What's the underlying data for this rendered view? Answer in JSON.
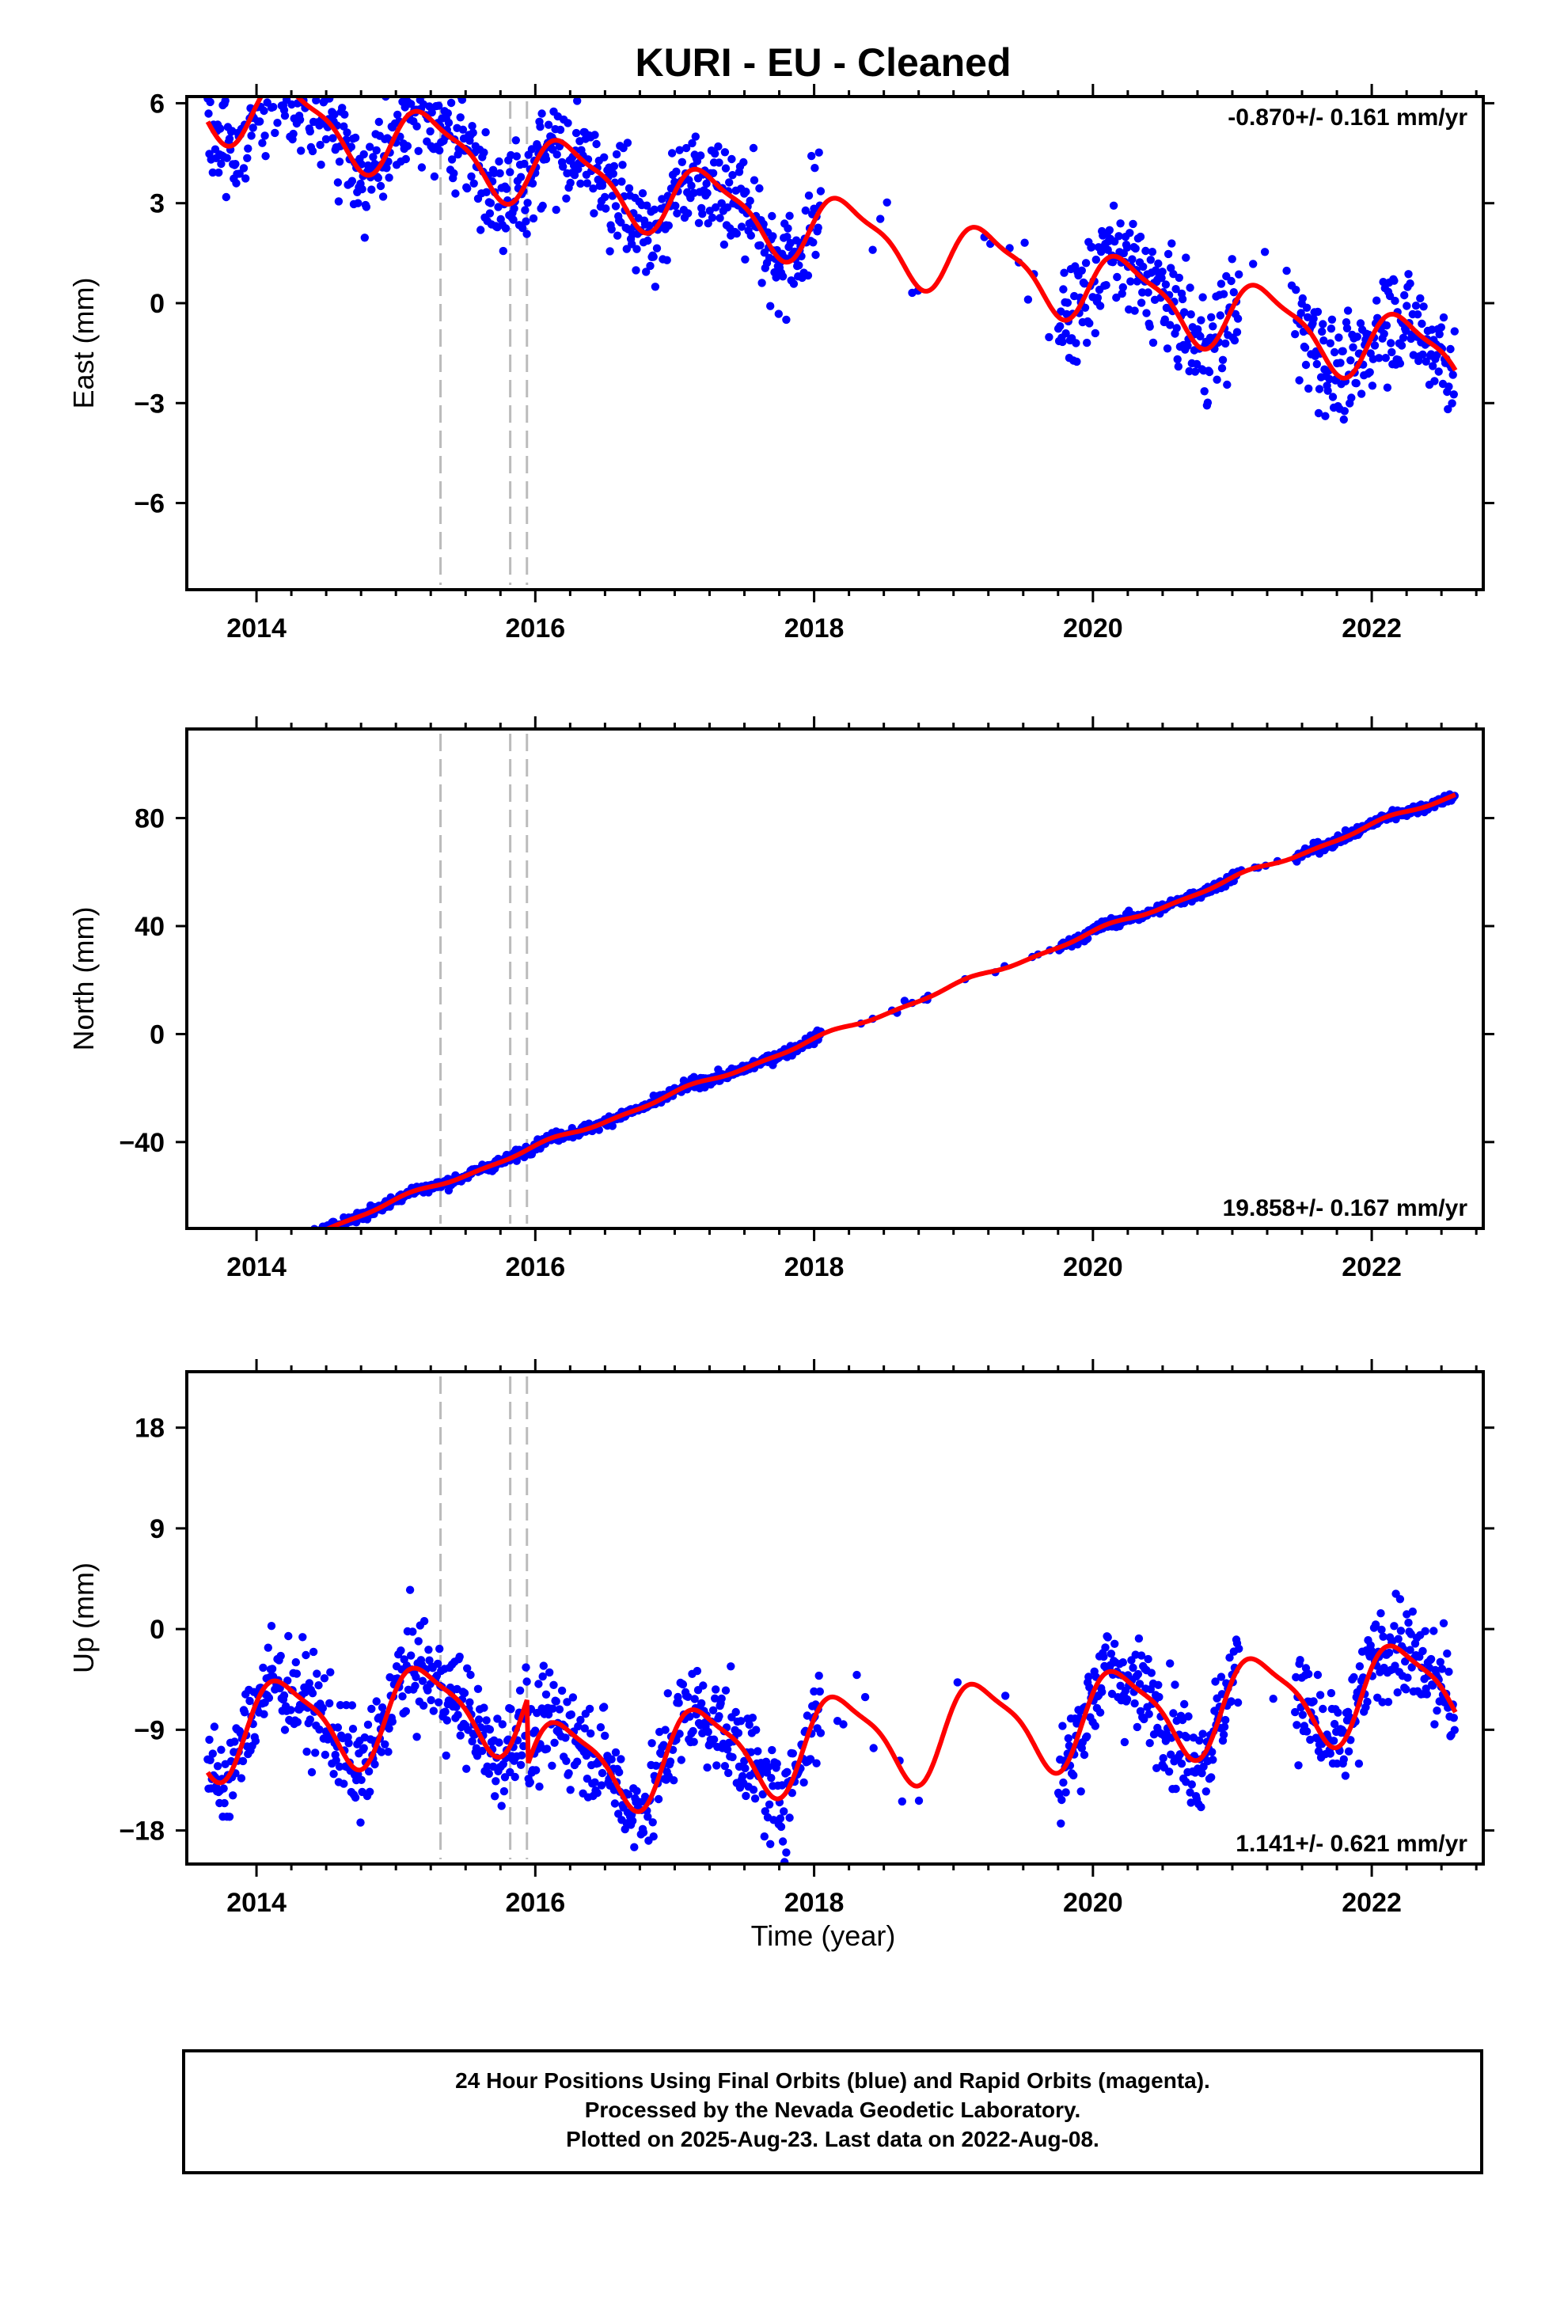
{
  "title": "KURI  - EU - Cleaned",
  "xlabel": "Time (year)",
  "x_ticks": [
    2014,
    2016,
    2018,
    2020,
    2022
  ],
  "x_range": [
    2013.5,
    2022.8
  ],
  "footer": {
    "line1": "24 Hour Positions Using Final Orbits (blue) and Rapid Orbits (magenta).",
    "line2": "Processed by the Nevada Geodetic Laboratory.",
    "line3": "Plotted on 2025-Aug-23. Last data on 2022-Aug-08."
  },
  "colors": {
    "final_orbits": "#0000ff",
    "model_fit": "#ff0000",
    "event_lines": "#bbbbbb"
  },
  "chart_data": [
    {
      "type": "scatter",
      "panel": "east",
      "ylabel": "East (mm)",
      "ylim": [
        -8.6,
        6.2
      ],
      "yticks": [
        6,
        3,
        0,
        -3,
        -6
      ],
      "ytick_labels": [
        "6",
        "3",
        "0",
        "−3",
        "−6"
      ],
      "rate_text": "-0.870+/- 0.161 mm/yr",
      "rate": -0.87,
      "annual": {
        "amp": 1.0,
        "phase": 0.0
      },
      "semiannual": {
        "amp": 0.3,
        "phase": 0.6
      },
      "noise_sd": 1.0,
      "offset": 2.2,
      "offsets": [],
      "events": [
        2015.32,
        2015.82,
        2015.94
      ]
    },
    {
      "type": "scatter",
      "panel": "north",
      "ylabel": "North (mm)",
      "ylim": [
        -72,
        113
      ],
      "yticks": [
        80,
        40,
        0,
        -40
      ],
      "ytick_labels": [
        "80",
        "40",
        "0",
        "−40"
      ],
      "rate_text": "19.858+/- 0.167 mm/yr",
      "rate": 19.858,
      "annual": {
        "amp": 0.8,
        "phase": 1.0
      },
      "semiannual": {
        "amp": 0.4,
        "phase": 0.2
      },
      "noise_sd": 1.2,
      "offset": -0.3,
      "offsets": [],
      "events": [
        2015.32,
        2015.82,
        2015.94
      ]
    },
    {
      "type": "scatter",
      "panel": "up",
      "ylabel": "Up (mm)",
      "ylim": [
        -21,
        23
      ],
      "yticks": [
        18,
        9,
        0,
        -9,
        -18
      ],
      "ytick_labels": [
        "18",
        "9",
        "0",
        "−9",
        "−18"
      ],
      "rate_text": "1.141+/- 0.621 mm/yr",
      "rate": 1.141,
      "annual": {
        "amp": 4.0,
        "phase": 0.3
      },
      "semiannual": {
        "amp": 1.0,
        "phase": 1.2
      },
      "noise_sd": 2.8,
      "offset": -4.0,
      "offsets": [
        {
          "t": 2015.94,
          "dy": -6
        }
      ],
      "events": [
        2015.32,
        2015.82,
        2015.94
      ]
    }
  ],
  "data_span": {
    "start": 2013.65,
    "end": 2022.6,
    "gaps": [
      [
        2018.05,
        2019.75
      ],
      [
        2021.05,
        2021.45
      ]
    ]
  }
}
